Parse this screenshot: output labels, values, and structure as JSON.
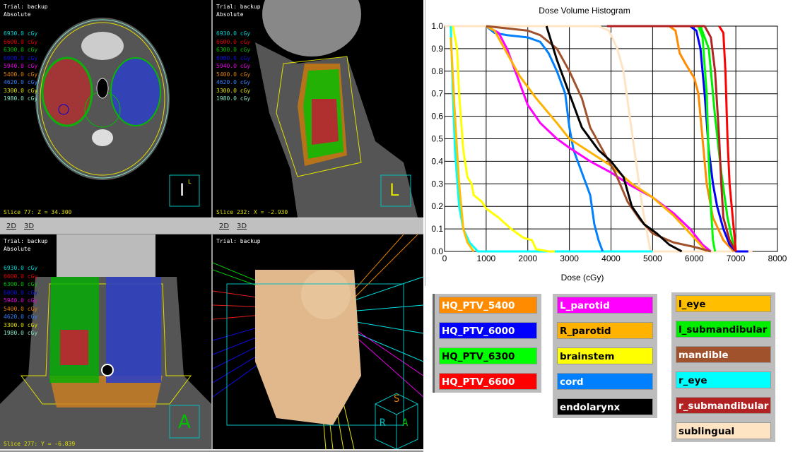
{
  "isodose_levels": [
    {
      "label": "6930.0 cGy",
      "color": "#00d0d0"
    },
    {
      "label": "6600.0 cGy",
      "color": "#e00000"
    },
    {
      "label": "6300.0 cGy",
      "color": "#00c000"
    },
    {
      "label": "6000.0 cGy",
      "color": "#1010e0"
    },
    {
      "label": "5940.0 cGy",
      "color": "#e000e0"
    },
    {
      "label": "5400.0 cGy",
      "color": "#e08000"
    },
    {
      "label": "4620.0 cGy",
      "color": "#3080ff"
    },
    {
      "label": "3300.0 cGy",
      "color": "#e0e000"
    },
    {
      "label": "1980.0 cGy",
      "color": "#80e0c0"
    }
  ],
  "views": {
    "axial": {
      "trial": "Trial: backup",
      "mode": "Absolute",
      "slice": "Slice 77: Z = 34.300",
      "orientation": "I",
      "orientation_small": "L"
    },
    "sagittal": {
      "trial": "Trial: backup",
      "mode": "Absolute",
      "slice": "Slice 232: X = -2.930",
      "orientation": "L"
    },
    "coronal": {
      "trial": "Trial: backup",
      "mode": "Absolute",
      "slice": "Slice 277: Y = -6.839",
      "orientation": "A"
    },
    "render3d": {
      "trial": "Trial: backup",
      "cube_labels": [
        "S",
        "R",
        "A"
      ]
    }
  },
  "toolbar": {
    "btn_2d": "2D",
    "btn_3d": "3D"
  },
  "chart_data": {
    "type": "line",
    "title": "Dose Volume Histogram",
    "xlabel": "Dose (cGy)",
    "ylabel": "",
    "xlim": [
      0,
      8000
    ],
    "ylim": [
      0,
      1
    ],
    "xticks": [
      "0",
      "1000",
      "2000",
      "3000",
      "4000",
      "5000",
      "6000",
      "7000",
      "8000"
    ],
    "yticks": [
      "0.0",
      "0.1",
      "0.2",
      "0.3",
      "0.4",
      "0.5",
      "0.6",
      "0.7",
      "0.8",
      "0.9",
      "1.0"
    ],
    "grid": true,
    "legend_placement": "bottom",
    "series": [
      {
        "name": "sublingual",
        "color": "#ffe4c4",
        "text": "#000",
        "x": [
          0,
          3700,
          3950,
          4150,
          4300,
          4450,
          4600,
          4750,
          4900,
          4950,
          7400
        ],
        "y": [
          1,
          1,
          0.98,
          0.9,
          0.8,
          0.6,
          0.4,
          0.2,
          0.05,
          0,
          0
        ]
      },
      {
        "name": "r_eye",
        "color": "#00ffff",
        "text": "#000",
        "x": [
          150,
          200,
          250,
          350,
          450,
          600,
          800,
          5000
        ],
        "y": [
          1,
          0.7,
          0.45,
          0.2,
          0.1,
          0.04,
          0,
          0
        ]
      },
      {
        "name": "l_eye",
        "color": "#ffbf00",
        "text": "#000",
        "x": [
          150,
          250,
          350,
          450,
          550,
          700
        ],
        "y": [
          0.95,
          0.6,
          0.3,
          0.1,
          0.04,
          0
        ]
      },
      {
        "name": "brainstem",
        "color": "#ffff00",
        "text": "#000",
        "x": [
          200,
          300,
          350,
          450,
          550,
          650,
          700,
          900,
          1000,
          1300,
          1600,
          1900,
          2100,
          2200,
          2500,
          2650
        ],
        "y": [
          1,
          0.9,
          0.7,
          0.45,
          0.33,
          0.3,
          0.25,
          0.22,
          0.19,
          0.15,
          0.1,
          0.06,
          0.05,
          0.01,
          0,
          0
        ]
      },
      {
        "name": "cord",
        "color": "#0080ff",
        "text": "#fff",
        "x": [
          1000,
          1200,
          1500,
          2000,
          2300,
          2500,
          2700,
          2900,
          3000,
          3100,
          3300,
          3500,
          3600,
          3700,
          3800
        ],
        "y": [
          1,
          0.97,
          0.96,
          0.95,
          0.93,
          0.88,
          0.8,
          0.7,
          0.55,
          0.45,
          0.35,
          0.25,
          0.12,
          0.05,
          0
        ]
      },
      {
        "name": "L_parotid",
        "color": "#ff00ff",
        "text": "#fff",
        "x": [
          1000,
          1300,
          1500,
          1800,
          2000,
          2300,
          2700,
          3000,
          3500,
          4000,
          4500,
          5000,
          5500,
          5900,
          6200,
          6400
        ],
        "y": [
          1,
          0.97,
          0.9,
          0.75,
          0.65,
          0.57,
          0.5,
          0.46,
          0.4,
          0.35,
          0.29,
          0.24,
          0.17,
          0.1,
          0.03,
          0
        ]
      },
      {
        "name": "R_parotid",
        "color": "#ffb300",
        "text": "#000",
        "x": [
          1000,
          1200,
          1500,
          1800,
          2200,
          2700,
          3000,
          3500,
          4000,
          4500,
          5000,
          5500,
          6000,
          6300
        ],
        "y": [
          1,
          0.98,
          0.88,
          0.78,
          0.68,
          0.57,
          0.5,
          0.44,
          0.38,
          0.3,
          0.24,
          0.16,
          0.06,
          0
        ]
      },
      {
        "name": "mandible",
        "color": "#a0522d",
        "text": "#fff",
        "x": [
          1000,
          2000,
          2300,
          2700,
          3000,
          3300,
          3500,
          3800,
          4100,
          4400,
          4700,
          5000,
          5500,
          6000,
          6400
        ],
        "y": [
          1,
          0.98,
          0.96,
          0.9,
          0.8,
          0.68,
          0.55,
          0.45,
          0.35,
          0.22,
          0.14,
          0.08,
          0.04,
          0.02,
          0
        ]
      },
      {
        "name": "endolarynx",
        "color": "#000000",
        "text": "#fff",
        "x": [
          2450,
          2700,
          3000,
          3300,
          3700,
          4000,
          4300,
          4500,
          4800,
          5100,
          5400,
          5700
        ],
        "y": [
          1,
          0.85,
          0.7,
          0.55,
          0.45,
          0.4,
          0.33,
          0.2,
          0.12,
          0.08,
          0.03,
          0
        ]
      },
      {
        "name": "HQ_PTV_5400",
        "color": "#ff8c00",
        "text": "#fff",
        "x": [
          5400,
          5550,
          5650,
          5800,
          6000,
          6100,
          6200,
          6300,
          6450,
          6700,
          6950
        ],
        "y": [
          1,
          0.98,
          0.88,
          0.83,
          0.77,
          0.7,
          0.5,
          0.3,
          0.15,
          0.05,
          0
        ]
      },
      {
        "name": "HQ_PTV_6000",
        "color": "#0000ff",
        "text": "#fff",
        "x": [
          5900,
          6050,
          6150,
          6250,
          6350,
          6450,
          6550,
          6700,
          6850,
          7000,
          7300
        ],
        "y": [
          1,
          0.98,
          0.9,
          0.7,
          0.45,
          0.3,
          0.2,
          0.1,
          0.03,
          0,
          0
        ]
      },
      {
        "name": "HQ_PTV_6300",
        "color": "#00ff00",
        "text": "#000",
        "x": [
          6100,
          6200,
          6300,
          6350,
          6400,
          6450,
          6500
        ],
        "y": [
          1,
          0.95,
          0.7,
          0.4,
          0.2,
          0.05,
          0
        ]
      },
      {
        "name": "l_submandibular",
        "color": "#00ee00",
        "text": "#000",
        "x": [
          6150,
          6350,
          6500,
          6650,
          6800,
          6950,
          7000
        ],
        "y": [
          1,
          0.9,
          0.6,
          0.35,
          0.15,
          0.02,
          0
        ]
      },
      {
        "name": "r_submandibular",
        "color": "#b22222",
        "text": "#fff",
        "x": [
          3900,
          6250,
          6400,
          6500,
          6600,
          6650,
          6700,
          6850,
          7000
        ],
        "y": [
          1,
          1,
          0.95,
          0.8,
          0.5,
          0.3,
          0.15,
          0.05,
          0
        ]
      },
      {
        "name": "HQ_PTV_6600",
        "color": "#ff0000",
        "text": "#fff",
        "x": [
          6600,
          6700,
          6750,
          6800,
          6850,
          6950,
          7000
        ],
        "y": [
          1,
          0.97,
          0.8,
          0.5,
          0.3,
          0.1,
          0
        ]
      }
    ],
    "legend_groups": [
      [
        "HQ_PTV_5400",
        "HQ_PTV_6000",
        "HQ_PTV_6300",
        "HQ_PTV_6600"
      ],
      [
        "L_parotid",
        "R_parotid",
        "brainstem",
        "cord",
        "endolarynx"
      ],
      [
        "l_eye",
        "l_submandibular",
        "mandible",
        "r_eye",
        "r_submandibular",
        "sublingual"
      ]
    ]
  }
}
